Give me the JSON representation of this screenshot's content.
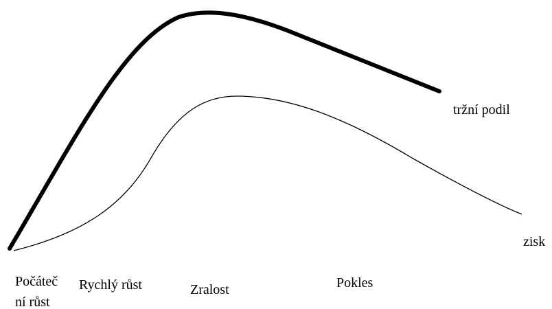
{
  "curve_labels": [
    "tržní podil",
    "zisk"
  ],
  "stage_labels": [
    [
      "Počáteč",
      "ní růst"
    ],
    [
      "Rychlý růst"
    ],
    [
      "Zralost"
    ],
    [
      "Pokles"
    ]
  ]
}
